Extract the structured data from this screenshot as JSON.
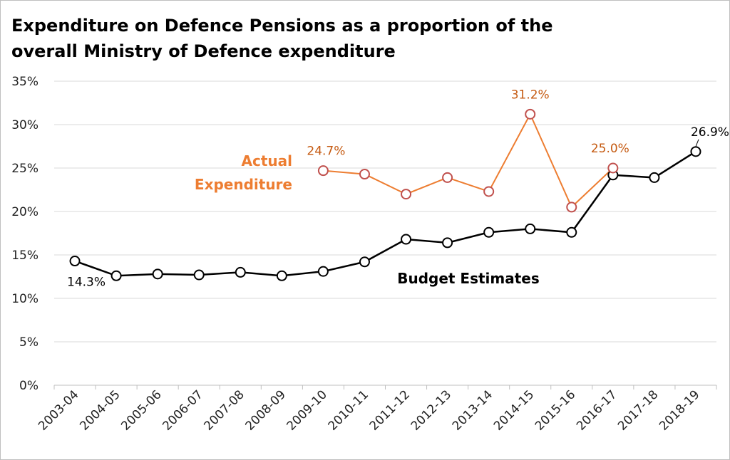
{
  "chart_data": {
    "type": "line",
    "title": "Expenditure on Defence Pensions as a proportion of the\noverall Ministry of Defence expenditure",
    "xlabel": "",
    "ylabel": "",
    "ylim": [
      0,
      35
    ],
    "ytick_step": 5,
    "ytick_format": "percent",
    "grid": true,
    "categories": [
      "2003-04",
      "2004-05",
      "2005-06",
      "2006-07",
      "2007-08",
      "2008-09",
      "2009-10",
      "2010-11",
      "2011-12",
      "2012-13",
      "2013-14",
      "2014-15",
      "2015-16",
      "2016-17",
      "2017-18",
      "2018-19"
    ],
    "series": [
      {
        "name": "Budget Estimates",
        "color": "#000000",
        "marker_stroke": "#000000",
        "values": [
          14.3,
          12.6,
          12.8,
          12.7,
          13.0,
          12.6,
          13.1,
          14.2,
          16.8,
          16.4,
          17.6,
          18.0,
          17.6,
          24.2,
          23.9,
          26.9
        ],
        "data_labels": [
          {
            "index": 0,
            "text": "14.3%"
          },
          {
            "index": 15,
            "text": "26.9%"
          }
        ]
      },
      {
        "name": "Actual\nExpenditure",
        "color": "#ED7D31",
        "marker_stroke": "#C0504D",
        "values": [
          null,
          null,
          null,
          null,
          null,
          null,
          24.7,
          24.3,
          22.0,
          23.9,
          22.3,
          31.2,
          20.5,
          25.0,
          null,
          null
        ],
        "data_labels": [
          {
            "index": 6,
            "text": "24.7%"
          },
          {
            "index": 11,
            "text": "31.2%"
          },
          {
            "index": 13,
            "text": "25.0%"
          }
        ]
      }
    ]
  }
}
